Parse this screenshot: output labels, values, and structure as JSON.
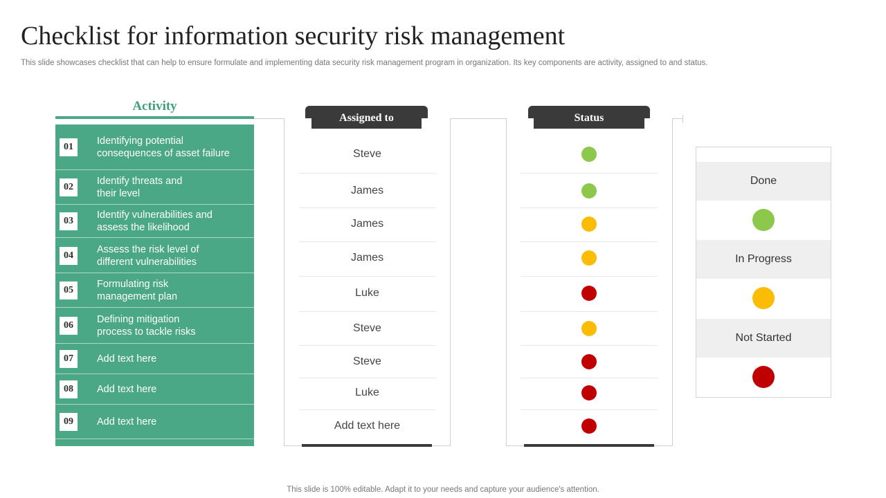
{
  "title": "Checklist for information security risk management",
  "subtitle": "This slide showcases checklist that can help to ensure formulate and implementing data security risk management program in organization. Its key components are activity,  assigned to and status.",
  "footer": "This slide is 100% editable. Adapt it to your needs and capture your audience's attention.",
  "colors": {
    "done": "#8cc84b",
    "in_progress": "#fbbc05",
    "not_started": "#c00000",
    "accent": "#4aa886"
  },
  "headers": {
    "activity": "Activity",
    "assigned": "Assigned to",
    "status": "Status"
  },
  "rows": [
    {
      "num": "01",
      "activity": "Identifying  potential\nconsequences of asset failure",
      "assigned": "Steve",
      "status": "done"
    },
    {
      "num": "02",
      "activity": "Identify threats and\ntheir level",
      "assigned": "James",
      "status": "done"
    },
    {
      "num": "03",
      "activity": "Identify vulnerabilities and\nassess the likelihood",
      "assigned": "James",
      "status": "in_progress"
    },
    {
      "num": "04",
      "activity": "Assess the risk level  of\ndifferent vulnerabilities",
      "assigned": "James",
      "status": "in_progress"
    },
    {
      "num": "05",
      "activity": "Formulating risk\nmanagement plan",
      "assigned": "Luke",
      "status": "not_started"
    },
    {
      "num": "06",
      "activity": "Defining mitigation\nprocess to tackle risks",
      "assigned": "Steve",
      "status": "in_progress"
    },
    {
      "num": "07",
      "activity": "Add text here",
      "assigned": "Steve",
      "status": "not_started"
    },
    {
      "num": "08",
      "activity": "Add text here",
      "assigned": "Luke",
      "status": "not_started"
    },
    {
      "num": "09",
      "activity": "Add text here",
      "assigned": "Add text here",
      "status": "not_started"
    }
  ],
  "legend": [
    {
      "label": "Done",
      "status": "done"
    },
    {
      "label": "In Progress",
      "status": "in_progress"
    },
    {
      "label": "Not Started",
      "status": "not_started"
    }
  ]
}
